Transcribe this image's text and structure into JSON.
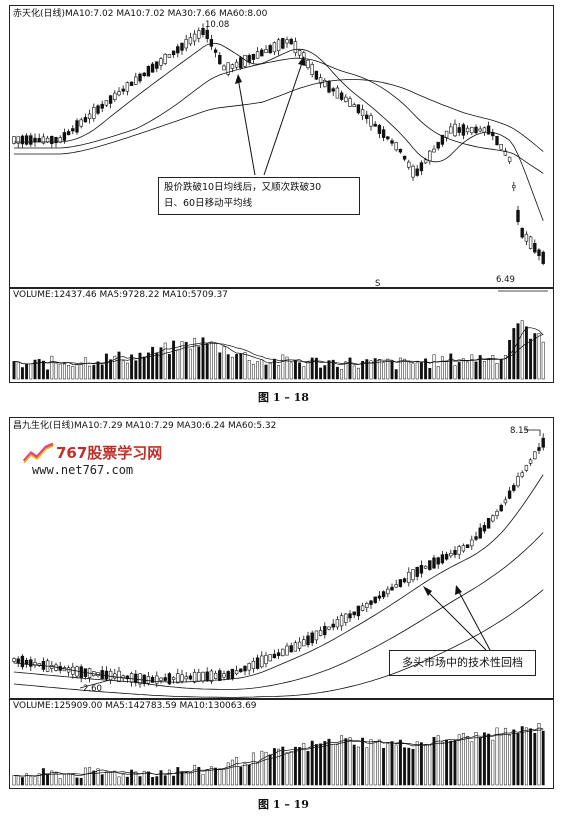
{
  "figure1": {
    "header": "赤天化(日线)MA10:7.02 MA10:7.02 MA30:7.66 MA60:8.00",
    "volume_header": "VOLUME:12437.46 MA5:9728.22 MA10:5709.37",
    "annotation": [
      "股价跌破10日均线后，又顺次跌破30",
      "日、60日移动平均线"
    ],
    "high_label": "10.08",
    "low_label": "6.49",
    "marker_label": "S",
    "caption": "图 1 – 18"
  },
  "figure2": {
    "header": "昌九生化(日线)MA10:7.29 MA10:7.29 MA30:6.24 MA60:5.32",
    "volume_header": "VOLUME:125909.00 MA5:142783.59 MA10:130063.69",
    "annotation": "多头市场中的技术性回档",
    "high_label": "8.15",
    "low_label": "2.60",
    "caption": "图 1 – 19"
  },
  "watermark": {
    "title": "767股票学习网",
    "url": "www.net767.com"
  },
  "colors": {
    "ink": "#111111",
    "watermark_red": "#c0302a",
    "watermark_pink": "#e0468c"
  },
  "chart_data": [
    {
      "type": "candlestick",
      "stock": "赤天化",
      "period": "日线",
      "indicators": {
        "MA10": 7.02,
        "MA30": 7.66,
        "MA60": 8.0
      },
      "high": 10.08,
      "low": 6.49,
      "volume": {
        "VOLUME": 12437.46,
        "MA5": 9728.22,
        "MA10": 5709.37
      }
    },
    {
      "type": "candlestick",
      "stock": "昌九生化",
      "period": "日线",
      "indicators": {
        "MA10": 7.29,
        "MA30": 6.24,
        "MA60": 5.32
      },
      "high": 8.15,
      "low": 2.6,
      "volume": {
        "VOLUME": 125909.0,
        "MA5": 142783.59,
        "MA10": 130063.69
      }
    }
  ]
}
